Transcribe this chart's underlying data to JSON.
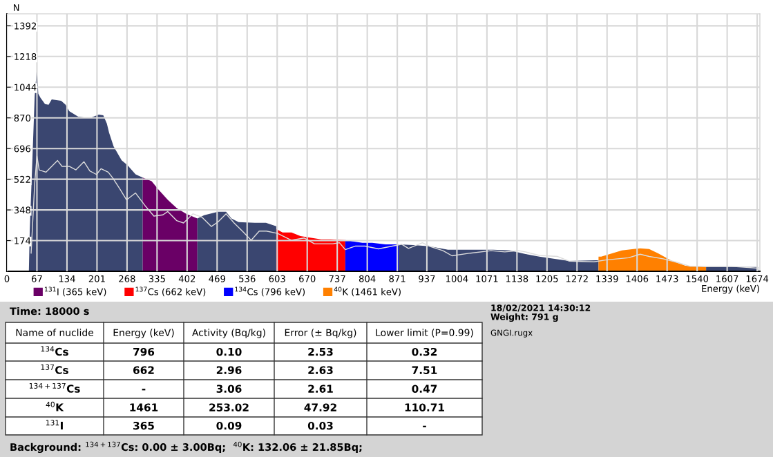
{
  "chart_data": [
    {
      "type": "area",
      "xlabel": "Energy (keV)",
      "ylabel": "N",
      "xlim": [
        0,
        1680
      ],
      "ylim": [
        0,
        1460
      ],
      "xticks": [
        0,
        67,
        134,
        201,
        268,
        335,
        402,
        469,
        536,
        603,
        670,
        737,
        804,
        871,
        937,
        1004,
        1071,
        1138,
        1205,
        1272,
        1339,
        1406,
        1473,
        1540,
        1607,
        1674
      ],
      "yticks": [
        174,
        348,
        522,
        696,
        870,
        1044,
        1218,
        1392
      ],
      "grid": true,
      "legend": "bottom",
      "series": [
        {
          "type": "area",
          "color": "#3a4670",
          "x": [
            49,
            51,
            57,
            62,
            67,
            70,
            75,
            85,
            93,
            100,
            121,
            131,
            139,
            159,
            185,
            205,
            215,
            223,
            228,
            238,
            256,
            269,
            287,
            303
          ],
          "values": [
            0,
            235,
            641,
            995,
            1156,
            1007,
            983,
            948,
            944,
            975,
            967,
            944,
            908,
            877,
            869,
            889,
            885,
            838,
            786,
            708,
            629,
            602,
            550,
            531
          ]
        },
        {
          "type": "area",
          "name": "$^{131}$I (365 keV)",
          "color": "#6a0066",
          "x": [
            303,
            323,
            338,
            359,
            379,
            400,
            425
          ],
          "values": [
            531,
            511,
            464,
            405,
            358,
            326,
            299
          ]
        },
        {
          "type": "area",
          "color": "#3a4670",
          "x": [
            425,
            440,
            471,
            489,
            501,
            517,
            553,
            578,
            601
          ],
          "values": [
            299,
            318,
            338,
            338,
            299,
            279,
            275,
            275,
            255
          ]
        },
        {
          "type": "area",
          "name": "$^{137}$Cs (662 keV)",
          "color": "#ff0000",
          "x": [
            601,
            615,
            635,
            655,
            701,
            722,
            755
          ],
          "values": [
            240,
            220,
            220,
            200,
            181,
            181,
            177
          ]
        },
        {
          "type": "area",
          "name": "$^{134}$Cs (796 keV)",
          "color": "#0000ff",
          "x": [
            755,
            793,
            815,
            845,
            874
          ],
          "values": [
            177,
            161,
            161,
            153,
            153
          ]
        },
        {
          "type": "area",
          "color": "#3a4670",
          "x": [
            874,
            907,
            943,
            984,
            1034,
            1085,
            1122,
            1157,
            1188,
            1254,
            1315,
            1320
          ],
          "values": [
            153,
            149,
            142,
            122,
            122,
            122,
            118,
            98,
            83,
            59,
            63,
            63
          ]
        },
        {
          "type": "area",
          "name": "$^{40}$K (1461 keV)",
          "color": "#ff8000",
          "x": [
            1320,
            1326,
            1372,
            1398,
            1413,
            1433,
            1453,
            1484,
            1514,
            1560
          ],
          "values": [
            83,
            83,
            118,
            126,
            130,
            126,
            102,
            59,
            31,
            24
          ]
        },
        {
          "type": "area",
          "color": "#3a4670",
          "x": [
            1560,
            1617,
            1676
          ],
          "values": [
            24,
            24,
            24
          ]
        },
        {
          "type": "line",
          "color": "#dcdcdc",
          "x": [
            54,
            62,
            67,
            72,
            87,
            113,
            123,
            139,
            154,
            172,
            185,
            200,
            210,
            226,
            236,
            251,
            267,
            287,
            308,
            328,
            348,
            359,
            379,
            394,
            415,
            435,
            456,
            471,
            489,
            507,
            528,
            545,
            563,
            579,
            604,
            635,
            663,
            686,
            727,
            742,
            755,
            778,
            799,
            829,
            860,
            881,
            896,
            927,
            942,
            973,
            993,
            1034,
            1080,
            1111,
            1142,
            1157,
            1188,
            1229,
            1254,
            1310,
            1336,
            1387,
            1413,
            1433,
            1464,
            1495,
            1525,
            1561,
            1617,
            1676
          ],
          "values": [
            103,
            497,
            654,
            575,
            562,
            628,
            595,
            595,
            575,
            621,
            569,
            549,
            582,
            562,
            530,
            471,
            405,
            444,
            373,
            313,
            320,
            339,
            287,
            274,
            326,
            307,
            254,
            280,
            326,
            274,
            221,
            176,
            228,
            228,
            215,
            176,
            189,
            156,
            156,
            162,
            123,
            143,
            143,
            127,
            143,
            153,
            130,
            162,
            143,
            117,
            88,
            103,
            117,
            110,
            117,
            110,
            90,
            84,
            58,
            54,
            64,
            77,
            97,
            84,
            71,
            51,
            28,
            28,
            28,
            18
          ]
        }
      ]
    },
    {
      "type": "other",
      "annotations": [
        "Time: 18000 s",
        "Name of nuclide",
        "Energy (keV)",
        "Activity (Bq/kg)",
        "Error (± Bq/kg)",
        "Lower limit (P=0.99)",
        "$^{134}$Cs",
        "796",
        "0.10",
        "2.53",
        "0.32",
        "$^{137}$Cs",
        "662",
        "2.96",
        "2.63",
        "7.51",
        "$^{134+137}$Cs",
        "-",
        "3.06",
        "2.61",
        "0.47",
        "$^{40}$K",
        "1461",
        "253.02",
        "47.92",
        "110.71",
        "$^{131}$I",
        "365",
        "0.09",
        "0.03",
        "-",
        "Background: $^{134+137}$Cs: 0.00 ± 3.00Bq;  $^{40}$K: 132.06 ± 21.85Bq;",
        "18/02/2021 14:30:12",
        "Weight: 791 g",
        "GNGI.rugx"
      ]
    }
  ]
}
